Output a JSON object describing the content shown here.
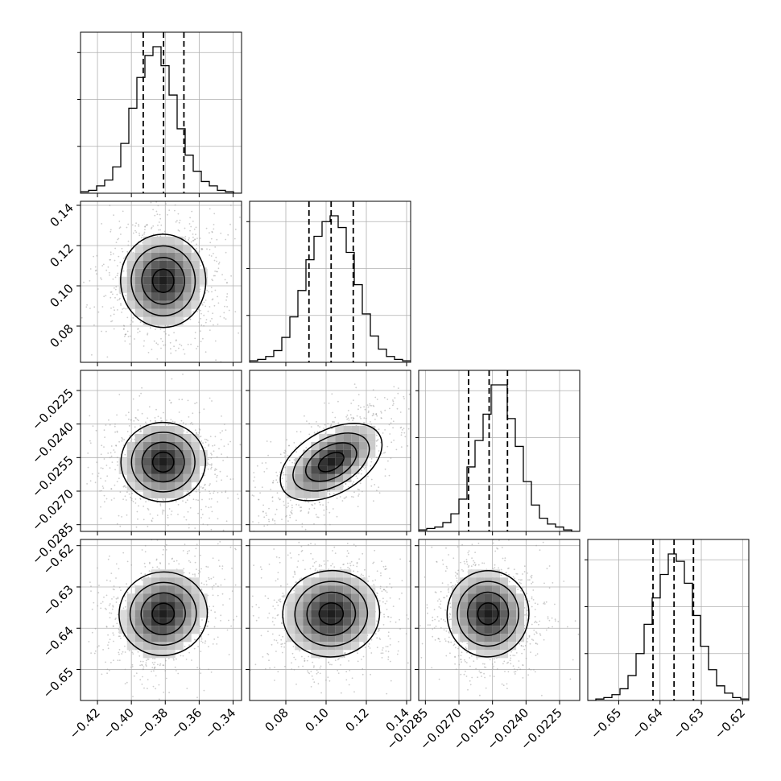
{
  "chart_data": {
    "type": "corner",
    "title": "",
    "grid": true,
    "colors": {
      "line": "#000000",
      "grid": "#b0b0b0",
      "scatter": "#9a9a9a"
    },
    "params": [
      {
        "range": [
          -0.43,
          -0.335
        ],
        "xticks": [
          -0.42,
          -0.4,
          -0.38,
          -0.36,
          -0.34
        ],
        "xtick_labels": [
          "−0.42",
          "−0.40",
          "−0.38",
          "−0.36",
          "−0.34"
        ],
        "yticks": [],
        "ytick_labels": [],
        "mean": -0.3812,
        "std": 0.0118,
        "quantiles": [
          -0.393,
          -0.381,
          -0.369
        ],
        "hist_values": [
          1,
          2,
          5,
          9,
          18,
          34,
          58,
          79,
          94,
          100,
          87,
          67,
          44,
          26,
          15,
          8,
          5,
          2,
          1,
          0
        ]
      },
      {
        "range": [
          0.062,
          0.142
        ],
        "xticks": [
          0.08,
          0.1,
          0.12,
          0.14
        ],
        "xtick_labels": [
          "0.08",
          "0.10",
          "0.12",
          "0.14"
        ],
        "yticks": [
          0.08,
          0.1,
          0.12,
          0.14
        ],
        "ytick_labels": [
          "0.08",
          "0.10",
          "0.12",
          "0.14"
        ],
        "mean": 0.1025,
        "std": 0.0112,
        "quantiles": [
          0.0915,
          0.1025,
          0.1135
        ],
        "hist_values": [
          1,
          2,
          4,
          8,
          17,
          31,
          49,
          70,
          86,
          96,
          100,
          92,
          75,
          53,
          33,
          18,
          9,
          4,
          2,
          1
        ]
      },
      {
        "range": [
          -0.0288,
          -0.0216
        ],
        "xticks": [
          -0.0285,
          -0.027,
          -0.0255,
          -0.024,
          -0.0225
        ],
        "xtick_labels": [
          "−0.0285",
          "−0.0270",
          "−0.0255",
          "−0.0240",
          "−0.0225"
        ],
        "yticks": [
          -0.0285,
          -0.027,
          -0.0255,
          -0.024,
          -0.0225
        ],
        "ytick_labels": [
          "−0.0285",
          "−0.0270",
          "−0.0255",
          "−0.0240",
          "−0.0225"
        ],
        "mean": -0.0257,
        "std": 0.00085,
        "quantiles": [
          -0.02657,
          -0.02565,
          -0.02483
        ],
        "hist_values": [
          1,
          2,
          3,
          6,
          12,
          22,
          44,
          62,
          80,
          100,
          100,
          77,
          58,
          34,
          18,
          9,
          5,
          3,
          1,
          0
        ]
      },
      {
        "range": [
          -0.6575,
          -0.6185
        ],
        "xticks": [
          -0.65,
          -0.64,
          -0.63,
          -0.62
        ],
        "xtick_labels": [
          "−0.65",
          "−0.64",
          "−0.63",
          "−0.62"
        ],
        "yticks": [
          -0.65,
          -0.64,
          -0.63,
          -0.62
        ],
        "ytick_labels": [
          "−0.65",
          "−0.64",
          "−0.63",
          "−0.62"
        ],
        "mean": -0.6365,
        "std": 0.0051,
        "quantiles": [
          -0.6417,
          -0.6366,
          -0.6319
        ],
        "hist_values": [
          0,
          1,
          2,
          4,
          8,
          17,
          32,
          52,
          70,
          86,
          100,
          95,
          80,
          58,
          37,
          21,
          10,
          5,
          2,
          1
        ]
      }
    ],
    "correlations": [
      [
        1.0,
        0.05,
        0.02,
        0.18
      ],
      [
        0.05,
        1.0,
        0.62,
        0.08
      ],
      [
        0.02,
        0.62,
        1.0,
        -0.08
      ],
      [
        0.18,
        0.08,
        -0.08,
        1.0
      ]
    ]
  }
}
